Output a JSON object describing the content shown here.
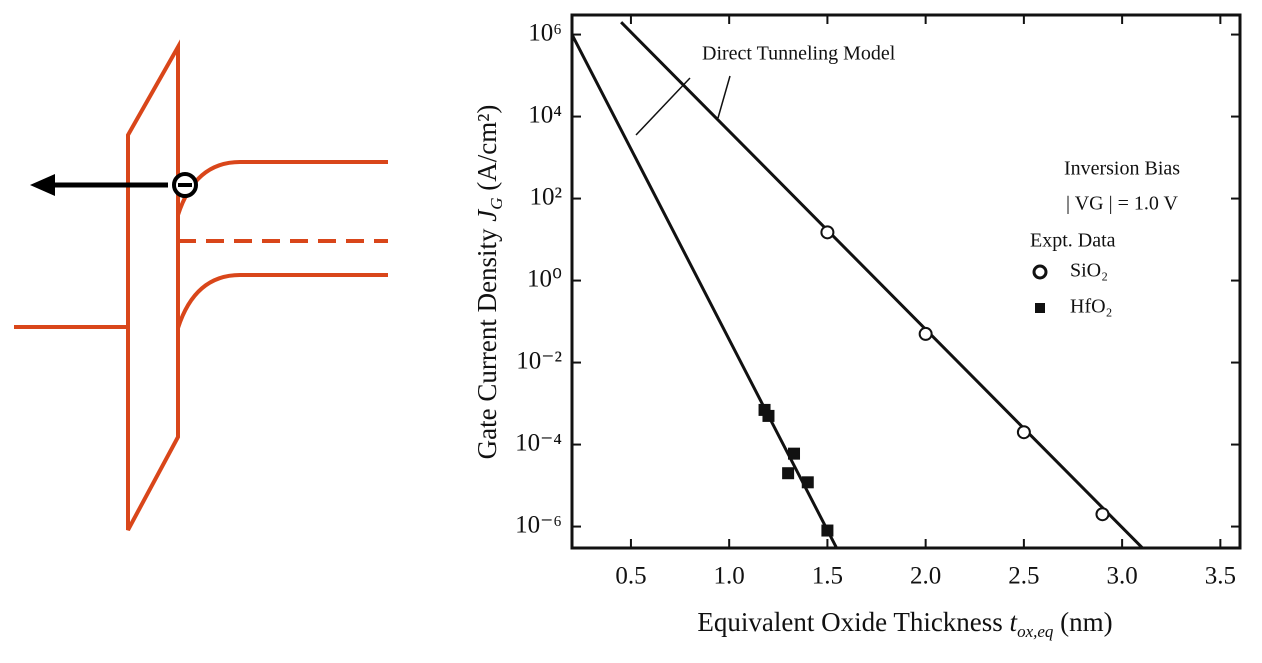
{
  "chart_data": {
    "type": "scatter",
    "ylabel": "Gate Current Density",
    "ylabel_symbol": "J",
    "ylabel_sub": "G",
    "ylabel_unit": "(A/cm²)",
    "xlabel": "Equivalent Oxide Thickness",
    "xlabel_symbol": "t",
    "xlabel_sub": "ox,eq",
    "xlabel_unit": "(nm)",
    "log_y": true,
    "xlim": [
      0.2,
      3.6
    ],
    "ylim": [
      3e-07,
      3000000
    ],
    "xticks": [
      0.5,
      {
        "value": 1,
        "label": "1.0"
      },
      1.5,
      {
        "value": 2,
        "label": "2.0"
      },
      2.5,
      {
        "value": 3,
        "label": "3.0"
      },
      3.5
    ],
    "yticks": [
      {
        "value": 1e-06,
        "label": "10⁻⁶"
      },
      {
        "value": 0.0001,
        "label": "10⁻⁴"
      },
      {
        "value": 0.01,
        "label": "10⁻²"
      },
      {
        "value": 1,
        "label": "10⁰"
      },
      {
        "value": 100,
        "label": "10²"
      },
      {
        "value": 10000,
        "label": "10⁴"
      },
      {
        "value": 1000000,
        "label": "10⁶"
      }
    ],
    "annotations": [
      "Direct Tunneling Model",
      "Inversion Bias",
      "| VG | = 1.0 V",
      "Expt. Data"
    ],
    "series": [
      {
        "name": "SiO₂",
        "marker": "circle",
        "color": "#111111",
        "x": [
          1.5,
          2.0,
          2.5,
          2.9
        ],
        "values": [
          15,
          0.05,
          0.0002,
          2e-06
        ]
      },
      {
        "name": "HfO₂",
        "marker": "square",
        "color": "#111111",
        "x": [
          1.18,
          1.2,
          1.33,
          1.3,
          1.4,
          1.5
        ],
        "values": [
          0.0007,
          0.0005,
          6e-05,
          2e-05,
          1.2e-05,
          8e-07
        ]
      }
    ],
    "model_lines": [
      {
        "x": [
          0.45,
          3.12
        ],
        "values": [
          2000000,
          2.5e-07
        ]
      },
      {
        "x": [
          0.2,
          1.55
        ],
        "values": [
          1000000,
          2.8e-07
        ]
      }
    ]
  }
}
